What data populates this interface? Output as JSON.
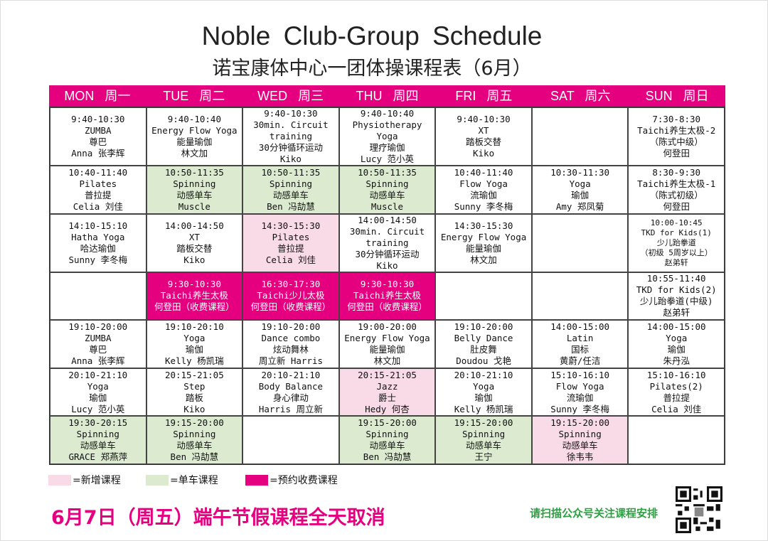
{
  "header": {
    "title": "Noble Club-Group Schedule",
    "subtitle": "诺宝康体中心一团体操课程表（6月）"
  },
  "colors": {
    "accent": "#e4007f",
    "new": "#f8dbe6",
    "spinning": "#dcebd0",
    "paid": "#e4007f"
  },
  "days": [
    "MON 周一",
    "TUE 周二",
    "WED 周三",
    "THU 周四",
    "FRI 周五",
    "SAT 周六",
    "SUN 周日"
  ],
  "rows": [
    [
      {
        "type": "plain",
        "lines": [
          "9:40-10:30",
          "ZUMBA",
          "尊巴",
          "Anna 张李辉"
        ]
      },
      {
        "type": "plain",
        "lines": [
          "9:40-10:40",
          "Energy Flow Yoga",
          "能量瑜伽",
          "林文加"
        ]
      },
      {
        "type": "plain",
        "lines": [
          "9:40-10:30",
          "30min. Circuit",
          "training",
          "30分钟循环运动",
          "Kiko"
        ]
      },
      {
        "type": "plain",
        "lines": [
          "9:40-10:40",
          "Physiotherapy Yoga",
          "理疗瑜伽",
          "Lucy 范小英"
        ]
      },
      {
        "type": "plain",
        "lines": [
          "9:40-10:30",
          "XT",
          "踏板交替",
          "Kiko"
        ]
      },
      {
        "type": "empty",
        "lines": []
      },
      {
        "type": "plain",
        "lines": [
          "7:30-8:30",
          "Taichi养生太极-2",
          "（陈式中级）",
          "何登田"
        ]
      }
    ],
    [
      {
        "type": "plain",
        "lines": [
          "10:40-11:40",
          "Pilates",
          "普拉提",
          "Celia 刘佳"
        ]
      },
      {
        "type": "green",
        "lines": [
          "10:50-11:35",
          "Spinning",
          "动感单车",
          "Muscle"
        ]
      },
      {
        "type": "green",
        "lines": [
          "10:50-11:35",
          "Spinning",
          "动感单车",
          "Ben 冯劼慧"
        ]
      },
      {
        "type": "green",
        "lines": [
          "10:50-11:35",
          "Spinning",
          "动感单车",
          "Muscle"
        ]
      },
      {
        "type": "plain",
        "lines": [
          "10:40-11:40",
          "Flow Yoga",
          "流瑜伽",
          "Sunny 李冬梅"
        ]
      },
      {
        "type": "plain",
        "lines": [
          "10:30-11:30",
          "Yoga",
          "瑜伽",
          "Amy 郑凤菊"
        ]
      },
      {
        "type": "plain",
        "lines": [
          "8:30-9:30",
          "Taichi养生太极-1",
          "（陈式初级）",
          "何登田"
        ]
      }
    ],
    [
      {
        "type": "plain",
        "lines": [
          "14:10-15:10",
          "Hatha Yoga",
          "哈达瑜伽",
          "Sunny 李冬梅"
        ]
      },
      {
        "type": "plain",
        "lines": [
          "14:00-14:50",
          "XT",
          "踏板交替",
          "Kiko"
        ]
      },
      {
        "type": "pink",
        "lines": [
          "14:30-15:30",
          "Pilates",
          "普拉提",
          "Celia 刘佳"
        ]
      },
      {
        "type": "plain",
        "lines": [
          "14:00-14:50",
          "30min. Circuit",
          "training",
          "30分钟循环运动",
          "Kiko"
        ]
      },
      {
        "type": "plain",
        "lines": [
          "14:30-15:30",
          "Energy Flow Yoga",
          "能量瑜伽",
          "林文加"
        ]
      },
      {
        "type": "empty",
        "lines": []
      },
      {
        "type": "small",
        "lines": [
          "10:00-10:45",
          "TKD for Kids(1)",
          "少儿跆拳道",
          "（初级 5周岁以上）",
          "赵弟轩"
        ]
      }
    ],
    [
      {
        "type": "empty",
        "lines": []
      },
      {
        "type": "paid",
        "lines": [
          "9:30-10:30",
          "Taichi养生太极",
          "何登田（收费课程）"
        ]
      },
      {
        "type": "paid",
        "lines": [
          "16:30-17:30",
          "Taichi少儿太极",
          "何登田（收费课程）"
        ]
      },
      {
        "type": "paid",
        "lines": [
          "9:30-10:30",
          "Taichi养生太极",
          "何登田（收费课程）"
        ]
      },
      {
        "type": "empty",
        "lines": []
      },
      {
        "type": "empty",
        "lines": []
      },
      {
        "type": "plain",
        "lines": [
          "10:55-11:40",
          "TKD for Kids(2)",
          "少儿跆拳道(中级)",
          "赵弟轩"
        ]
      }
    ],
    [
      {
        "type": "plain",
        "lines": [
          "19:10-20:00",
          "ZUMBA",
          "尊巴",
          "Anna 张李辉"
        ]
      },
      {
        "type": "plain",
        "lines": [
          "19:10-20:10",
          "Yoga",
          "瑜伽",
          "Kelly 杨凯瑞"
        ]
      },
      {
        "type": "plain",
        "lines": [
          "19:10-20:00",
          "Dance combo",
          "炫动舞林",
          "周立新 Harris"
        ]
      },
      {
        "type": "plain",
        "lines": [
          "19:00-20:00",
          "Energy Flow Yoga",
          "能量瑜伽",
          "林文加"
        ]
      },
      {
        "type": "plain",
        "lines": [
          "19:10-20:00",
          "Belly Dance",
          "肚皮舞",
          "Doudou 戈艳"
        ]
      },
      {
        "type": "plain",
        "lines": [
          "14:00-15:00",
          "Latin",
          "国标",
          "黄蔚/任洁"
        ]
      },
      {
        "type": "plain",
        "lines": [
          "14:00-15:00",
          "Yoga",
          "瑜伽",
          "朱丹泓"
        ]
      }
    ],
    [
      {
        "type": "plain",
        "lines": [
          "20:10-21:10",
          "Yoga",
          "瑜伽",
          "Lucy 范小英"
        ]
      },
      {
        "type": "plain",
        "lines": [
          "20:15-21:05",
          "Step",
          "踏板",
          "Kiko"
        ]
      },
      {
        "type": "plain",
        "lines": [
          "20:10-21:10",
          "Body Balance",
          "身心律动",
          "Harris  周立新"
        ]
      },
      {
        "type": "pink",
        "lines": [
          "20:15-21:05",
          "Jazz",
          "爵士",
          "Hedy  何杏"
        ]
      },
      {
        "type": "plain",
        "lines": [
          "20:10-21:10",
          "Yoga",
          "瑜伽",
          "Kelly 杨凯瑞"
        ]
      },
      {
        "type": "plain",
        "lines": [
          "15:10-16:10",
          "Flow Yoga",
          "流瑜伽",
          "Sunny 李冬梅"
        ]
      },
      {
        "type": "plain",
        "lines": [
          "15:10-16:10",
          "Pilates(2)",
          "普拉提",
          "Celia 刘佳"
        ]
      }
    ],
    [
      {
        "type": "green",
        "lines": [
          "19:30-20:15",
          "Spinning",
          "动感单车",
          "GRACE 郑燕萍"
        ]
      },
      {
        "type": "green",
        "lines": [
          "19:15-20:00",
          "Spinning",
          "动感单车",
          "Ben 冯劼慧"
        ]
      },
      {
        "type": "empty",
        "lines": []
      },
      {
        "type": "green",
        "lines": [
          "19:15-20:00",
          "Spinning",
          "动感单车",
          "Ben 冯劼慧"
        ]
      },
      {
        "type": "green",
        "lines": [
          "19:15-20:00",
          "Spinning",
          "动感单车",
          "王宁"
        ]
      },
      {
        "type": "pink",
        "lines": [
          "19:15-20:00",
          "Spinning",
          "动感单车",
          "徐韦韦"
        ]
      },
      {
        "type": "empty",
        "lines": []
      }
    ]
  ],
  "legend": [
    {
      "label": "=新增课程",
      "color": "#f8dbe6"
    },
    {
      "label": "=单车课程",
      "color": "#dcebd0"
    },
    {
      "label": "=预约收费课程",
      "color": "#e4007f"
    }
  ],
  "footer": {
    "notice": "6月7日（周五）端午节假课程全天取消",
    "scan_text": "请扫描公众号关注课程安排"
  }
}
